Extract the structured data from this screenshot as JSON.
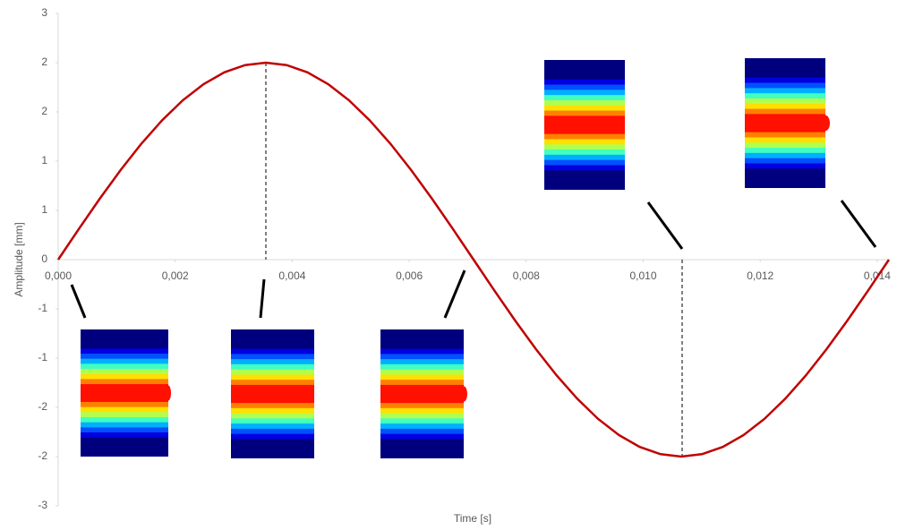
{
  "chart_data": {
    "type": "line",
    "x_label": "Time [s]",
    "y_label": "Amplitude [mm]",
    "xlim": [
      0,
      0.0142
    ],
    "ylim": [
      -2.5,
      2.5
    ],
    "xticks": [
      {
        "value": 0,
        "label": "0,000"
      },
      {
        "value": 0.002,
        "label": "0,002"
      },
      {
        "value": 0.004,
        "label": "0,004"
      },
      {
        "value": 0.006,
        "label": "0,006"
      },
      {
        "value": 0.008,
        "label": "0,008"
      },
      {
        "value": 0.01,
        "label": "0,010"
      },
      {
        "value": 0.012,
        "label": "0,012"
      },
      {
        "value": 0.014,
        "label": "0,014"
      }
    ],
    "yticks": [
      {
        "value": 2.5,
        "label": "3"
      },
      2,
      {
        "value": 1.5,
        "label": "2"
      },
      1,
      {
        "value": 0.5,
        "label": "1"
      },
      0,
      {
        "value": -0.5,
        "label": "-1"
      },
      -1,
      {
        "value": -1.5,
        "label": "-2"
      },
      -2,
      {
        "value": -2.5,
        "label": "-3"
      }
    ],
    "x": [
      0,
      0.000355,
      0.00071,
      0.001065,
      0.00142,
      0.001775,
      0.00213,
      0.002485,
      0.00284,
      0.003195,
      0.00355,
      0.003905,
      0.00426,
      0.004615,
      0.00497,
      0.005325,
      0.00568,
      0.006035,
      0.00639,
      0.006745,
      0.0071,
      0.007455,
      0.00781,
      0.008165,
      0.00852,
      0.008875,
      0.00923,
      0.009585,
      0.00994,
      0.010295,
      0.01065,
      0.011005,
      0.01136,
      0.011715,
      0.01207,
      0.012425,
      0.01278,
      0.013135,
      0.01349,
      0.013845,
      0.0142
    ],
    "series": [
      {
        "color": "#c00000",
        "values": [
          0,
          0.313,
          0.618,
          0.908,
          1.176,
          1.414,
          1.618,
          1.782,
          1.902,
          1.975,
          2,
          1.975,
          1.902,
          1.782,
          1.618,
          1.414,
          1.176,
          0.908,
          0.618,
          0.313,
          0,
          -0.313,
          -0.618,
          -0.908,
          -1.176,
          -1.414,
          -1.618,
          -1.782,
          -1.902,
          -1.975,
          -2,
          -1.975,
          -1.902,
          -1.782,
          -1.618,
          -1.414,
          -1.176,
          -0.908,
          -0.618,
          -0.313,
          0
        ]
      }
    ]
  }
}
